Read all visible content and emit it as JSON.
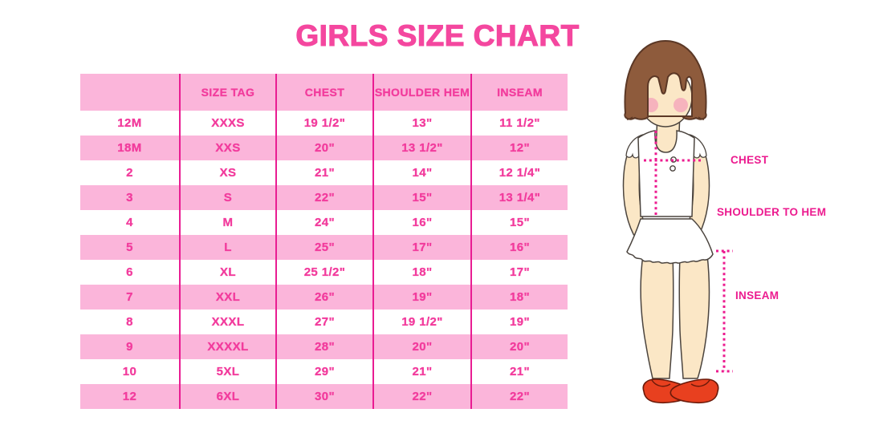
{
  "title": "GIRLS SIZE CHART",
  "colors": {
    "title_pink": "#F4479F",
    "text_pink": "#F23C9D",
    "row_pink": "#FBB5DA",
    "line_magenta": "#E91C92",
    "label_magenta": "#EC1B8F",
    "skin": "#FBE7C6",
    "skin_line": "#4B443E",
    "hair": "#8E5B3C",
    "hair_line": "#5B3826",
    "blush": "#F5A6BA",
    "shoe_red": "#E8401F",
    "shoe_line": "#6B1A0A",
    "garment_white": "#FFFFFF"
  },
  "chart_data": {
    "type": "table",
    "title": "GIRLS SIZE CHART",
    "columns": [
      "",
      "SIZE TAG",
      "CHEST",
      "SHOULDER HEM",
      "INSEAM"
    ],
    "rows": [
      [
        "12M",
        "XXXS",
        "19 1/2\"",
        "13\"",
        "11 1/2\""
      ],
      [
        "18M",
        "XXS",
        "20\"",
        "13 1/2\"",
        "12\""
      ],
      [
        "2",
        "XS",
        "21\"",
        "14\"",
        "12 1/4\""
      ],
      [
        "3",
        "S",
        "22\"",
        "15\"",
        "13 1/4\""
      ],
      [
        "4",
        "M",
        "24\"",
        "16\"",
        "15\""
      ],
      [
        "5",
        "L",
        "25\"",
        "17\"",
        "16\""
      ],
      [
        "6",
        "XL",
        "25 1/2\"",
        "18\"",
        "17\""
      ],
      [
        "7",
        "XXL",
        "26\"",
        "19\"",
        "18\""
      ],
      [
        "8",
        "XXXL",
        "27\"",
        "19 1/2\"",
        "19\""
      ],
      [
        "9",
        "XXXXL",
        "28\"",
        "20\"",
        "20\""
      ],
      [
        "10",
        "5XL",
        "29\"",
        "21\"",
        "21\""
      ],
      [
        "12",
        "6XL",
        "30\"",
        "22\"",
        "22\""
      ]
    ]
  },
  "diagram": {
    "chest_label": "CHEST",
    "shoulder_to_hem_label": "SHOULDER TO HEM",
    "inseam_label": "INSEAM"
  }
}
